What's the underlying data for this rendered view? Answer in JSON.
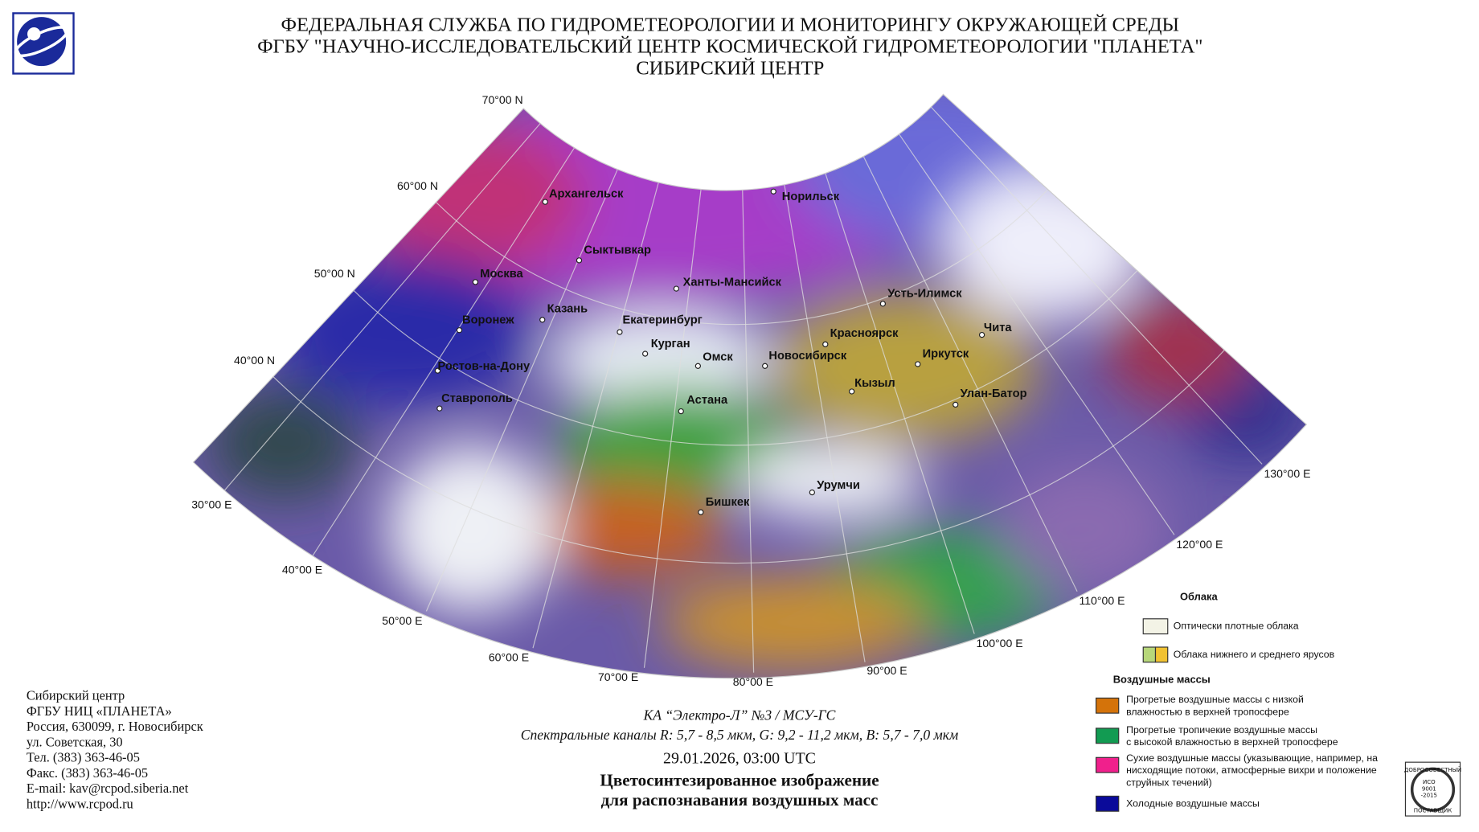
{
  "header": {
    "lines": [
      "ФЕДЕРАЛЬНАЯ СЛУЖБА ПО ГИДРОМЕТЕОРОЛОГИИ И МОНИТОРИНГУ ОКРУЖАЮЩЕЙ СРЕДЫ",
      "ФГБУ \"НАУЧНО-ИССЛЕДОВАТЕЛЬСКИЙ ЦЕНТР КОСМИЧЕСКОЙ ГИДРОМЕТЕОРОЛОГИИ \"ПЛАНЕТА\"",
      "СИБИРСКИЙ ЦЕНТР"
    ]
  },
  "map": {
    "parallels": [
      "70°00 N",
      "60°00 N",
      "50°00 N",
      "40°00 N"
    ],
    "meridians": [
      "30°00 E",
      "40°00 E",
      "50°00 E",
      "60°00 E",
      "70°00 E",
      "80°00 E",
      "90°00 E",
      "100°00 E",
      "110°00 E",
      "120°00 E",
      "130°00 E"
    ],
    "cities": [
      "Архангельск",
      "Сыктывкар",
      "Москва",
      "Ханты-Мансийск",
      "Норильск",
      "Усть-Илимск",
      "Казань",
      "Екатеринбург",
      "Воронеж",
      "Красноярск",
      "Чита",
      "Курган",
      "Омск",
      "Новосибирск",
      "Иркутск",
      "Ростов-на-Дону",
      "Кызыл",
      "Улан-Батор",
      "Ставрополь",
      "Астана",
      "Урумчи",
      "Бишкек"
    ]
  },
  "legend": {
    "clouds_title": "Облака",
    "clouds": [
      "Оптически плотные облака",
      "Облака нижнего и среднего ярусов"
    ],
    "air_title": "Воздушные массы",
    "air": [
      [
        "Прогретые воздушные массы с низкой",
        "влажностью в верхней тропосфере"
      ],
      [
        "Прогретые тропичекие воздушные массы",
        "с высокой влажностью в верхней тропосфере"
      ],
      [
        "Сухие воздушные массы (указывающие, например, на",
        "нисходящие потоки, атмосферные вихри и положение",
        "струйных течений)"
      ],
      [
        "Холодные воздушные массы"
      ]
    ]
  },
  "footer": {
    "address": [
      "Сибирский центр",
      "ФГБУ НИЦ «ПЛАНЕТА»",
      "Россия, 630099, г. Новосибирск",
      "ул. Советская, 30",
      "Тел. (383) 363-46-05",
      "Факс. (383) 363-46-05",
      "E-mail: kav@rcpod.siberia.net",
      "http://www.rcpod.ru"
    ]
  },
  "caption": {
    "satellite": "КА “Электро-Л” №3 / МСУ-ГС",
    "channels": "Спектральные каналы R: 5,7 - 8,5 мкм, G: 9,2 - 11,2 мкм, B: 5,7 - 7,0 мкм",
    "datetime": "29.01.2026, 03:00 UTC",
    "title": [
      "Цветосинтезированное изображение",
      "для распознавания воздушных масс"
    ]
  },
  "badge": {
    "top": "ДОБРОСОВЕСТНЫЙ",
    "lines": [
      "ИСО",
      "9001",
      "-2015"
    ],
    "bottom": "ПОСТАВЩИК"
  }
}
